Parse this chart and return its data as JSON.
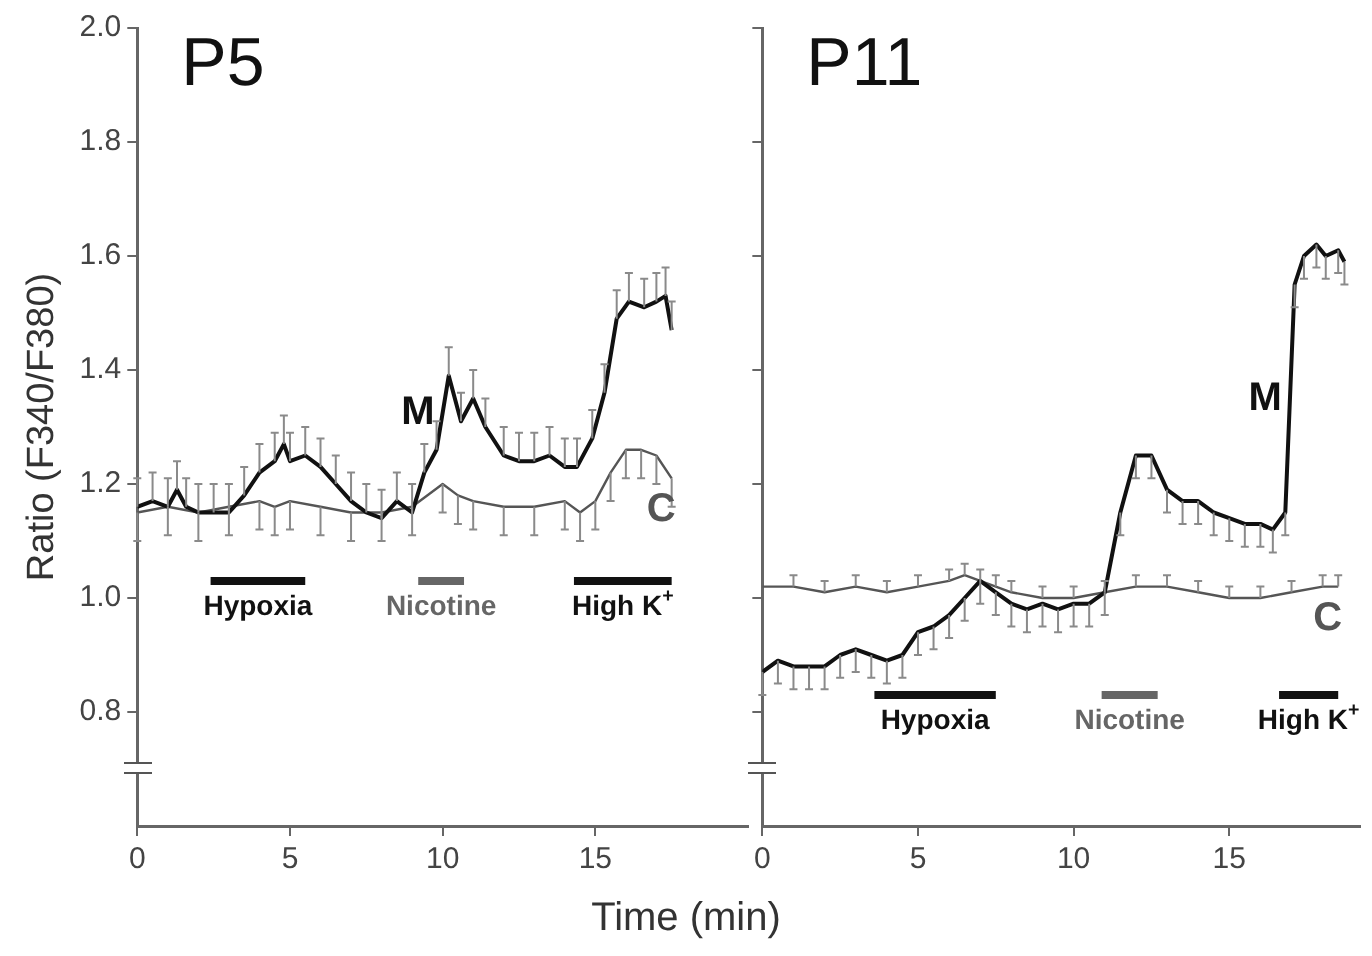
{
  "chart_data": [
    {
      "type": "line",
      "title": "P5",
      "ylabel": "Ratio (F340/F380)",
      "xlabel": "Time (min)",
      "xlim": [
        0,
        20
      ],
      "xticks": [
        0,
        5,
        10,
        15
      ],
      "ylim": [
        0.6,
        2.0
      ],
      "yticks": [
        0.8,
        {
          "value": 1,
          "label": "1.0"
        },
        1.2,
        1.4,
        1.6,
        1.8,
        {
          "value": 2,
          "label": "2.0"
        }
      ],
      "marker": "none",
      "series": [
        {
          "name": "M",
          "color": "#111111",
          "x": [
            0,
            0.5,
            1,
            1.3,
            1.6,
            2,
            2.5,
            3,
            3.5,
            4,
            4.5,
            4.8,
            5,
            5.5,
            6,
            6.5,
            7,
            7.5,
            8,
            8.5,
            9,
            9.4,
            9.8,
            10.2,
            10.6,
            11,
            11.4,
            12,
            12.5,
            13,
            13.5,
            14,
            14.4,
            14.9,
            15.3,
            15.7,
            16.1,
            16.6,
            17,
            17.3,
            17.5
          ],
          "values": [
            1.16,
            1.17,
            1.16,
            1.19,
            1.16,
            1.15,
            1.15,
            1.15,
            1.18,
            1.22,
            1.24,
            1.27,
            1.24,
            1.25,
            1.23,
            1.2,
            1.17,
            1.15,
            1.14,
            1.17,
            1.15,
            1.22,
            1.26,
            1.39,
            1.31,
            1.35,
            1.3,
            1.25,
            1.24,
            1.24,
            1.25,
            1.23,
            1.23,
            1.28,
            1.36,
            1.49,
            1.52,
            1.51,
            1.52,
            1.53,
            1.47
          ],
          "errors": [
            [
              1.16,
              1.21
            ],
            [
              1.17,
              1.22
            ],
            [
              1.16,
              1.21
            ],
            [
              1.19,
              1.24
            ],
            [
              1.16,
              1.21
            ],
            [
              1.15,
              1.2
            ],
            [
              1.15,
              1.2
            ],
            [
              1.15,
              1.2
            ],
            [
              1.18,
              1.23
            ],
            [
              1.22,
              1.27
            ],
            [
              1.24,
              1.29
            ],
            [
              1.27,
              1.32
            ],
            [
              1.24,
              1.29
            ],
            [
              1.25,
              1.3
            ],
            [
              1.23,
              1.28
            ],
            [
              1.2,
              1.25
            ],
            [
              1.17,
              1.22
            ],
            [
              1.15,
              1.2
            ],
            [
              1.14,
              1.19
            ],
            [
              1.17,
              1.22
            ],
            [
              1.15,
              1.2
            ],
            [
              1.22,
              1.27
            ],
            [
              1.26,
              1.31
            ],
            [
              1.39,
              1.44
            ],
            [
              1.31,
              1.36
            ],
            [
              1.35,
              1.4
            ],
            [
              1.3,
              1.35
            ],
            [
              1.25,
              1.3
            ],
            [
              1.24,
              1.29
            ],
            [
              1.24,
              1.29
            ],
            [
              1.25,
              1.3
            ],
            [
              1.23,
              1.28
            ],
            [
              1.23,
              1.28
            ],
            [
              1.28,
              1.33
            ],
            [
              1.36,
              1.41
            ],
            [
              1.49,
              1.54
            ],
            [
              1.52,
              1.57
            ],
            [
              1.51,
              1.56
            ],
            [
              1.52,
              1.57
            ],
            [
              1.53,
              1.58
            ],
            [
              1.47,
              1.52
            ]
          ]
        },
        {
          "name": "C",
          "color": "#555555",
          "x": [
            0,
            1,
            2,
            3,
            4,
            4.5,
            5,
            6,
            7,
            8,
            9,
            10,
            10.5,
            11,
            12,
            13,
            14,
            14.5,
            15,
            15.5,
            16,
            16.5,
            17,
            17.5
          ],
          "values": [
            1.15,
            1.16,
            1.15,
            1.16,
            1.17,
            1.16,
            1.17,
            1.16,
            1.15,
            1.15,
            1.16,
            1.2,
            1.18,
            1.17,
            1.16,
            1.16,
            1.17,
            1.15,
            1.17,
            1.22,
            1.26,
            1.26,
            1.25,
            1.21
          ],
          "errors": [
            [
              1.1,
              1.15
            ],
            [
              1.11,
              1.16
            ],
            [
              1.1,
              1.15
            ],
            [
              1.11,
              1.16
            ],
            [
              1.12,
              1.17
            ],
            [
              1.11,
              1.16
            ],
            [
              1.12,
              1.17
            ],
            [
              1.11,
              1.16
            ],
            [
              1.1,
              1.15
            ],
            [
              1.1,
              1.15
            ],
            [
              1.11,
              1.16
            ],
            [
              1.15,
              1.2
            ],
            [
              1.13,
              1.18
            ],
            [
              1.12,
              1.17
            ],
            [
              1.11,
              1.16
            ],
            [
              1.11,
              1.16
            ],
            [
              1.12,
              1.17
            ],
            [
              1.1,
              1.15
            ],
            [
              1.12,
              1.17
            ],
            [
              1.17,
              1.22
            ],
            [
              1.21,
              1.26
            ],
            [
              1.21,
              1.26
            ],
            [
              1.2,
              1.25
            ],
            [
              1.16,
              1.21
            ]
          ]
        },
        {
          "name": "Hypoxia",
          "color": "#111111",
          "x": [
            2.4,
            5.5
          ],
          "values": [
            1.03,
            1.03
          ]
        },
        {
          "name": "Nicotine",
          "color": "#666666",
          "x": [
            9.2,
            10.7
          ],
          "values": [
            1.03,
            1.03
          ]
        },
        {
          "name": "High K$^{+}$",
          "color": "#111111",
          "x": [
            14.3,
            17.5
          ],
          "values": [
            1.03,
            1.03
          ]
        }
      ]
    },
    {
      "type": "line",
      "title": "P11",
      "xlim": [
        0,
        19.2
      ],
      "xticks": [
        0,
        5,
        10,
        15
      ],
      "ylim": [
        0.6,
        2.0
      ],
      "yticks": [
        0.8,
        1,
        1.2,
        1.4,
        1.6,
        1.8,
        2
      ],
      "tick_labels": "x",
      "marker": "none",
      "series": [
        {
          "name": "M",
          "color": "#111111",
          "x": [
            0,
            0.5,
            1,
            1.5,
            2,
            2.5,
            3,
            3.5,
            4,
            4.5,
            5,
            5.5,
            6,
            6.5,
            7,
            7.5,
            8,
            8.5,
            9,
            9.5,
            10,
            10.5,
            11,
            11.5,
            12,
            12.5,
            13,
            13.5,
            14,
            14.5,
            15,
            15.5,
            16,
            16.4,
            16.8,
            17.1,
            17.4,
            17.8,
            18.1,
            18.5,
            18.7
          ],
          "values": [
            0.87,
            0.89,
            0.88,
            0.88,
            0.88,
            0.9,
            0.91,
            0.9,
            0.89,
            0.9,
            0.94,
            0.95,
            0.97,
            1.0,
            1.03,
            1.01,
            0.99,
            0.98,
            0.99,
            0.98,
            0.99,
            0.99,
            1.01,
            1.15,
            1.25,
            1.25,
            1.19,
            1.17,
            1.17,
            1.15,
            1.14,
            1.13,
            1.13,
            1.12,
            1.15,
            1.55,
            1.6,
            1.62,
            1.6,
            1.61,
            1.59
          ],
          "errors": [
            [
              0.83,
              0.87
            ],
            [
              0.85,
              0.89
            ],
            [
              0.84,
              0.88
            ],
            [
              0.84,
              0.88
            ],
            [
              0.84,
              0.88
            ],
            [
              0.86,
              0.9
            ],
            [
              0.87,
              0.91
            ],
            [
              0.86,
              0.9
            ],
            [
              0.85,
              0.89
            ],
            [
              0.86,
              0.9
            ],
            [
              0.9,
              0.94
            ],
            [
              0.91,
              0.95
            ],
            [
              0.93,
              0.97
            ],
            [
              0.96,
              1.0
            ],
            [
              0.99,
              1.03
            ],
            [
              0.97,
              1.01
            ],
            [
              0.95,
              0.99
            ],
            [
              0.94,
              0.98
            ],
            [
              0.95,
              0.99
            ],
            [
              0.94,
              0.98
            ],
            [
              0.95,
              0.99
            ],
            [
              0.95,
              0.99
            ],
            [
              0.97,
              1.01
            ],
            [
              1.11,
              1.15
            ],
            [
              1.21,
              1.25
            ],
            [
              1.21,
              1.25
            ],
            [
              1.15,
              1.19
            ],
            [
              1.13,
              1.17
            ],
            [
              1.13,
              1.17
            ],
            [
              1.11,
              1.15
            ],
            [
              1.1,
              1.14
            ],
            [
              1.09,
              1.13
            ],
            [
              1.09,
              1.13
            ],
            [
              1.08,
              1.12
            ],
            [
              1.11,
              1.15
            ],
            [
              1.51,
              1.55
            ],
            [
              1.56,
              1.6
            ],
            [
              1.58,
              1.62
            ],
            [
              1.56,
              1.6
            ],
            [
              1.57,
              1.61
            ],
            [
              1.55,
              1.59
            ]
          ]
        },
        {
          "name": "C",
          "color": "#555555",
          "x": [
            0,
            1,
            2,
            3,
            4,
            5,
            6,
            6.5,
            7,
            7.5,
            8,
            9,
            10,
            11,
            12,
            13,
            14,
            15,
            16,
            17,
            18,
            18.5
          ],
          "values": [
            1.02,
            1.02,
            1.01,
            1.02,
            1.01,
            1.02,
            1.03,
            1.04,
            1.03,
            1.02,
            1.01,
            1.0,
            1.0,
            1.01,
            1.02,
            1.02,
            1.01,
            1.0,
            1.0,
            1.01,
            1.02,
            1.02
          ],
          "errors": [
            null,
            [
              1.02,
              1.04
            ],
            [
              1.01,
              1.03
            ],
            [
              1.02,
              1.04
            ],
            [
              1.01,
              1.03
            ],
            [
              1.02,
              1.04
            ],
            [
              1.03,
              1.05
            ],
            [
              1.04,
              1.06
            ],
            [
              1.03,
              1.05
            ],
            [
              1.02,
              1.04
            ],
            [
              1.01,
              1.03
            ],
            [
              1.0,
              1.02
            ],
            [
              1.0,
              1.02
            ],
            [
              1.01,
              1.03
            ],
            [
              1.02,
              1.04
            ],
            [
              1.02,
              1.04
            ],
            [
              1.01,
              1.03
            ],
            [
              1.0,
              1.02
            ],
            [
              1.0,
              1.02
            ],
            [
              1.01,
              1.03
            ],
            [
              1.02,
              1.04
            ],
            [
              1.02,
              1.04
            ]
          ]
        },
        {
          "name": "Hypoxia",
          "color": "#111111",
          "x": [
            3.6,
            7.5
          ],
          "values": [
            0.83,
            0.83
          ]
        },
        {
          "name": "Nicotine",
          "color": "#666666",
          "x": [
            10.9,
            12.7
          ],
          "values": [
            0.83,
            0.83
          ]
        },
        {
          "name": "High K$^{+}$",
          "color": "#111111",
          "x": [
            16.6,
            18.5
          ],
          "values": [
            0.83,
            0.83
          ]
        }
      ]
    }
  ]
}
